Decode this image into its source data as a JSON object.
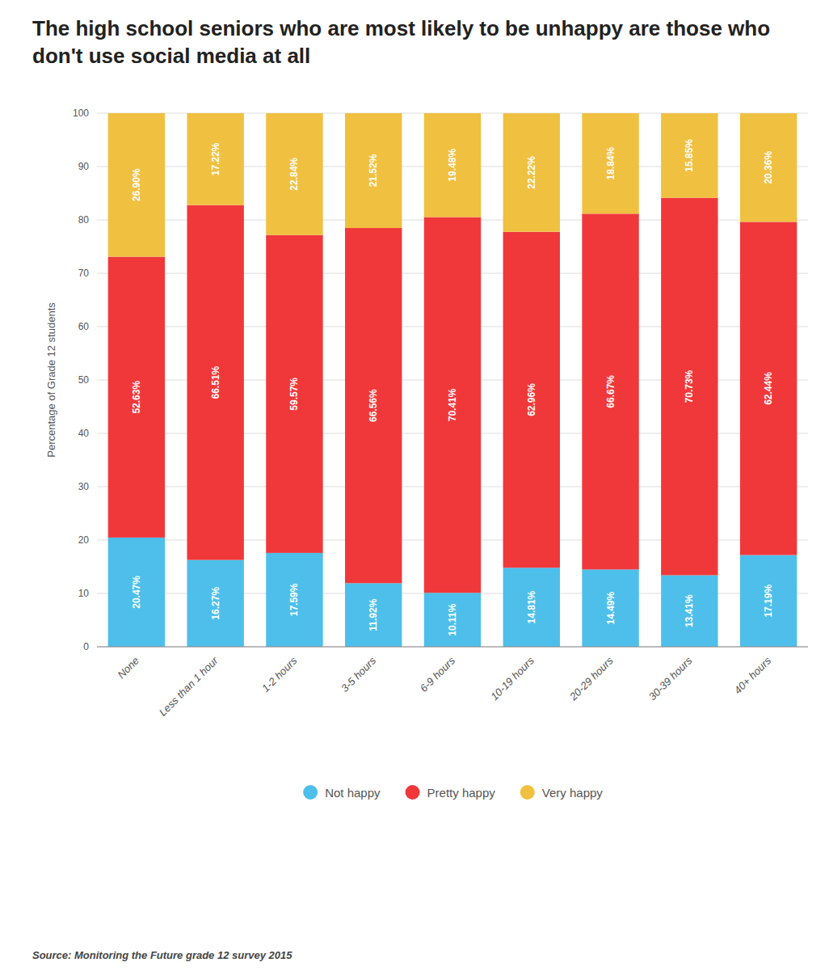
{
  "chart_data": {
    "type": "bar",
    "stacked": true,
    "title": "The high school seniors who are most likely to be unhappy are those who don't use social media at all",
    "ylabel": "Percentage of Grade 12 students",
    "source": "Source: Monitoring the Future grade 12 survey 2015",
    "categories": [
      "None",
      "Less than 1 hour",
      "1-2 hours",
      "3-5 hours",
      "6-9 hours",
      "10-19 hours",
      "20-29 hours",
      "30-39 hours",
      "40+ hours"
    ],
    "series": [
      {
        "name": "Not happy",
        "color": "#4DBFEA",
        "values": [
          20.47,
          16.27,
          17.59,
          11.92,
          10.11,
          14.81,
          14.49,
          13.41,
          17.19
        ],
        "value_labels": [
          "20.47%",
          "16.27%",
          "17.59%",
          "11.92%",
          "10.11%",
          "14.81%",
          "14.49%",
          "13.41%",
          "17.19%"
        ]
      },
      {
        "name": "Pretty happy",
        "color": "#F0383B",
        "values": [
          52.63,
          66.51,
          59.57,
          66.56,
          70.41,
          62.96,
          66.67,
          70.73,
          62.44
        ],
        "value_labels": [
          "52.63%",
          "66.51%",
          "59.57%",
          "66.56%",
          "70.41%",
          "62.96%",
          "66.67%",
          "70.73%",
          "62.44%"
        ]
      },
      {
        "name": "Very happy",
        "color": "#F0C040",
        "values": [
          26.9,
          17.22,
          22.84,
          21.52,
          19.48,
          22.22,
          18.84,
          15.85,
          20.36
        ],
        "value_labels": [
          "26.90%",
          "17.22%",
          "22.84%",
          "21.52%",
          "19.48%",
          "22.22%",
          "18.84%",
          "15.85%",
          "20.36%"
        ]
      }
    ],
    "ylim": [
      0,
      100
    ],
    "yticks": [
      0,
      10,
      20,
      30,
      40,
      50,
      60,
      70,
      80,
      90,
      100
    ],
    "grid": true,
    "legend": "bottom",
    "data_labels": true
  }
}
